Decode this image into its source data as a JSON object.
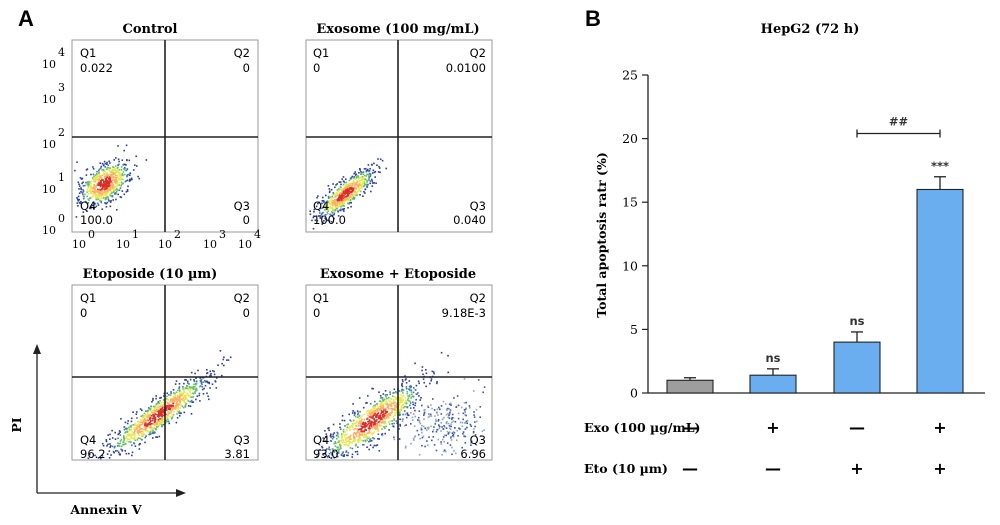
{
  "panel_a": {
    "letter": "A",
    "y_axis_label": "PI",
    "x_axis_label": "Annexin V",
    "tick_labels": [
      "0",
      "1",
      "2",
      "3",
      "4"
    ],
    "tick_base": "10",
    "plots": [
      {
        "title": "Control",
        "q1_name": "Q1",
        "q1_value": "0.022",
        "q2_name": "Q2",
        "q2_value": "0",
        "q3_name": "Q3",
        "q3_value": "0",
        "q4_name": "Q4",
        "q4_value": "100.0"
      },
      {
        "title": "Exosome (100 mg/mL)",
        "q1_name": "Q1",
        "q1_value": "0",
        "q2_name": "Q2",
        "q2_value": "0.0100",
        "q3_name": "Q3",
        "q3_value": "0.040",
        "q4_name": "Q4",
        "q4_value": "100.0"
      },
      {
        "title": "Etoposide (10 µm)",
        "q1_name": "Q1",
        "q1_value": "0",
        "q2_name": "Q2",
        "q2_value": "0",
        "q3_name": "Q3",
        "q3_value": "3.81",
        "q4_name": "Q4",
        "q4_value": "96.2"
      },
      {
        "title": "Exosome + Etoposide",
        "q1_name": "Q1",
        "q1_value": "0",
        "q2_name": "Q2",
        "q2_value": "9.18E-3",
        "q3_name": "Q3",
        "q3_value": "6.96",
        "q4_name": "Q4",
        "q4_value": "93.0"
      }
    ]
  },
  "panel_b": {
    "letter": "B",
    "treatment_rows": [
      {
        "label": "Exo (100 µg/mL)",
        "signs": [
          "—",
          "+",
          "—",
          "+"
        ]
      },
      {
        "label": "Eto (10 µm)",
        "signs": [
          "—",
          "—",
          "+",
          "+"
        ]
      }
    ]
  },
  "chart_data": {
    "type": "bar",
    "title": "HepG2 (72 h)",
    "ylabel": "Total apoptosis ratr (%)",
    "xlabel": "",
    "ylim": [
      0,
      25
    ],
    "yticks": [
      0,
      5,
      10,
      15,
      20,
      25
    ],
    "grid": false,
    "legend": "none",
    "bars": [
      {
        "value": 1.0,
        "error": 0.2,
        "color": "#9e9e9e",
        "label": ""
      },
      {
        "value": 1.4,
        "error": 0.5,
        "color": "#6aaef0",
        "label": "ns"
      },
      {
        "value": 4.0,
        "error": 0.8,
        "color": "#6aaef0",
        "label": "ns"
      },
      {
        "value": 16.0,
        "error": 1.0,
        "color": "#6aaef0",
        "label": "***"
      }
    ],
    "comparison": {
      "from_bar": 2,
      "to_bar": 3,
      "label": "##"
    }
  }
}
